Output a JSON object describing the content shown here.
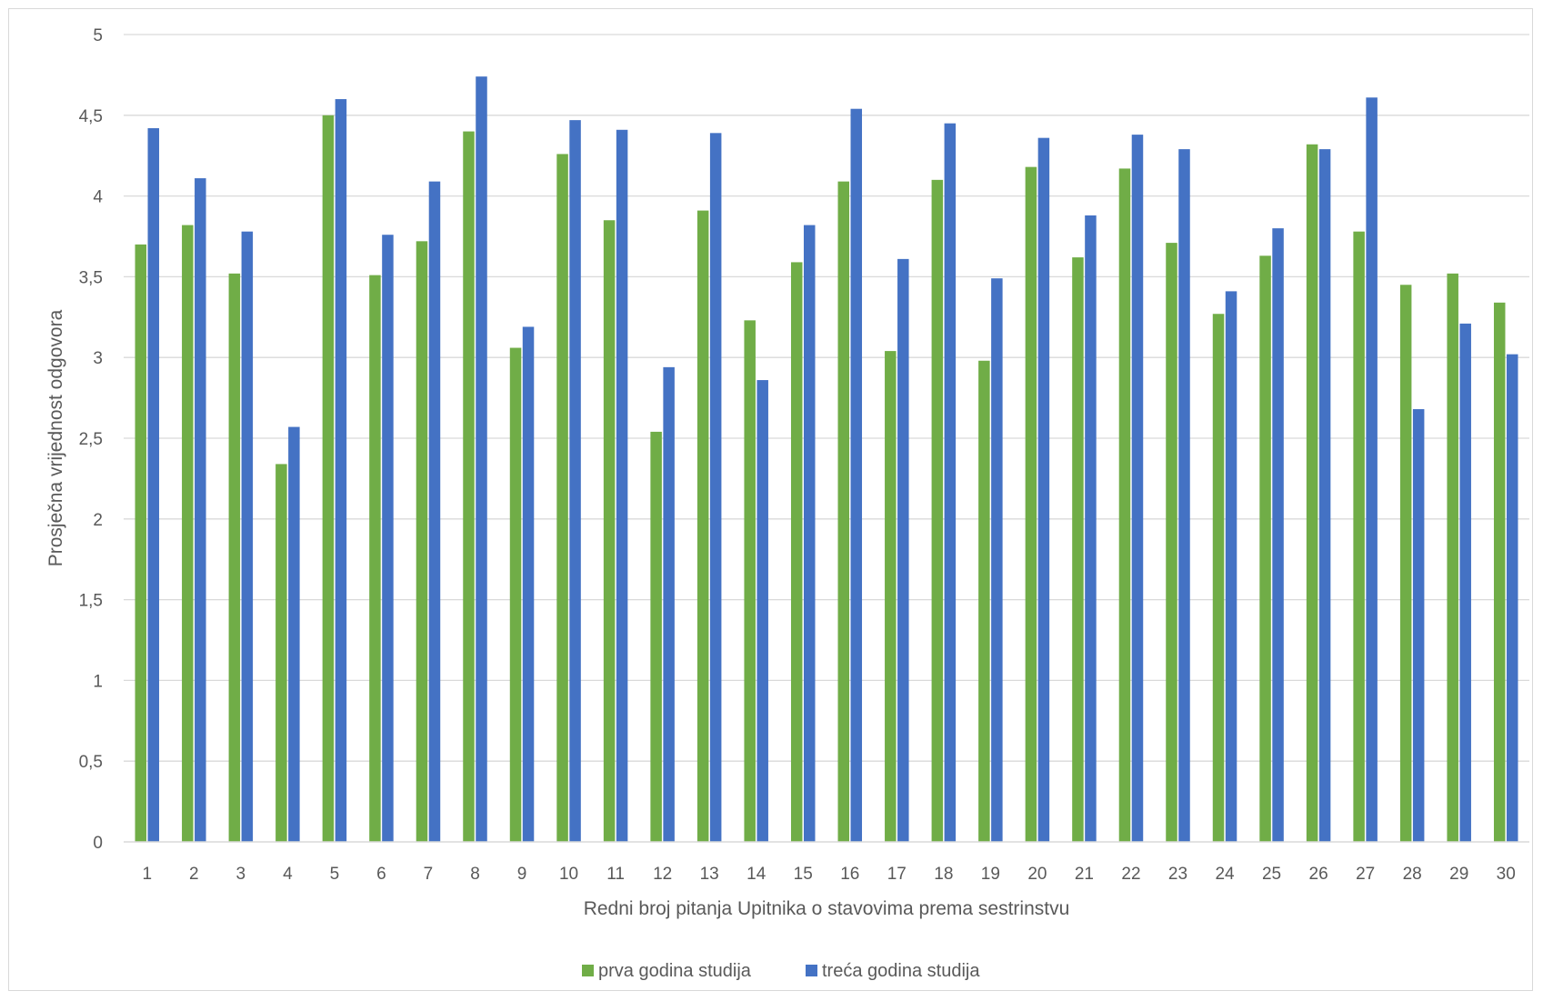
{
  "chart_data": {
    "type": "bar",
    "xlabel": "Redni broj pitanja Upitnika o stavovima prema sestrinstvu",
    "ylabel": "Prosječna vrijednost odgovora",
    "ylim": [
      0,
      5
    ],
    "yticks": [
      0,
      0.5,
      1,
      1.5,
      2,
      2.5,
      3,
      3.5,
      4,
      4.5,
      5
    ],
    "ytick_labels": [
      "0",
      "0,5",
      "1",
      "1,5",
      "2",
      "2,5",
      "3",
      "3,5",
      "4",
      "4,5",
      "5"
    ],
    "grid": true,
    "legend_position": "bottom",
    "categories": [
      "1",
      "2",
      "3",
      "4",
      "5",
      "6",
      "7",
      "8",
      "9",
      "10",
      "11",
      "12",
      "13",
      "14",
      "15",
      "16",
      "17",
      "18",
      "19",
      "20",
      "21",
      "22",
      "23",
      "24",
      "25",
      "26",
      "27",
      "28",
      "29",
      "30"
    ],
    "series": [
      {
        "name": "prva godina studija",
        "color": "#70ad47",
        "values": [
          3.7,
          3.82,
          3.52,
          2.34,
          4.5,
          3.51,
          3.72,
          4.4,
          3.06,
          4.26,
          3.85,
          2.54,
          3.91,
          3.23,
          3.59,
          4.09,
          3.04,
          4.1,
          2.98,
          4.18,
          3.62,
          4.17,
          3.71,
          3.27,
          3.63,
          4.32,
          3.78,
          3.45,
          3.52,
          3.34
        ]
      },
      {
        "name": "treća godina studija",
        "color": "#4472c4",
        "values": [
          4.42,
          4.11,
          3.78,
          2.57,
          4.6,
          3.76,
          4.09,
          4.74,
          3.19,
          4.47,
          4.41,
          2.94,
          4.39,
          2.86,
          3.82,
          4.54,
          3.61,
          4.45,
          3.49,
          4.36,
          3.88,
          4.38,
          4.29,
          3.41,
          3.8,
          4.29,
          4.61,
          2.68,
          3.21,
          3.02
        ]
      }
    ]
  }
}
